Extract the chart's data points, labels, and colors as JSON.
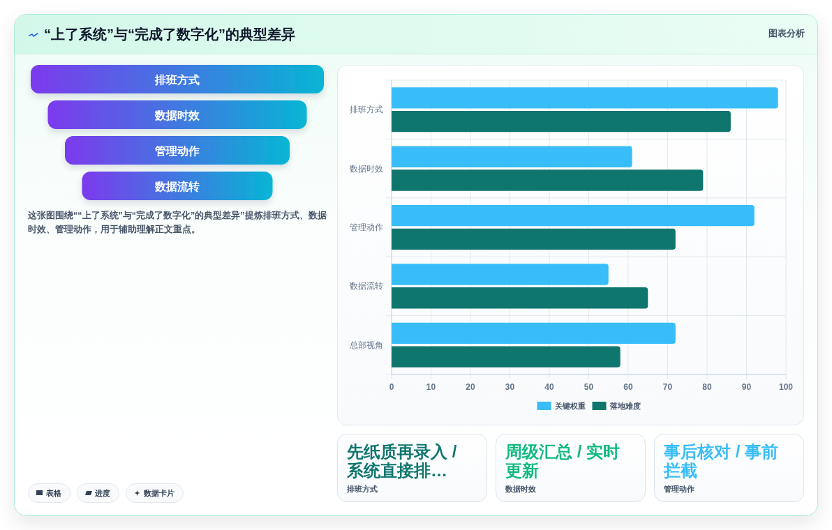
{
  "chart_data": [
    {
      "type": "other",
      "title": "“上了系统”与“完成了数字化”的典型差异",
      "categories": [
        "排班方式",
        "数据时效",
        "管理动作",
        "数据流转"
      ],
      "annotations": [
        "图表分析",
        "这张图围绕““上了系统”与“完成了数字化”的典型差异”提炼排班方式、数据时效、管理动作，用于辅助理解正文重点。",
        "表格",
        "进度",
        "数据卡片"
      ]
    },
    {
      "type": "bar",
      "orientation": "horizontal",
      "categories": [
        "排班方式",
        "数据时效",
        "管理动作",
        "数据流转",
        "总部视角"
      ],
      "series": [
        {
          "name": "关键权重",
          "color": "#38bdf8",
          "values": [
            98,
            61,
            92,
            55,
            72
          ]
        },
        {
          "name": "落地难度",
          "color": "#0f766e",
          "values": [
            86,
            79,
            72,
            65,
            58
          ]
        }
      ],
      "xlim": [
        0,
        100
      ],
      "xticks": [
        0,
        10,
        20,
        30,
        40,
        50,
        60,
        70,
        80,
        90,
        100
      ],
      "grid": true,
      "legend": "bottom"
    },
    {
      "type": "other",
      "title": "先纸质再录入 / 系统直接排…",
      "subtitle": "排班方式",
      "color": "#0f766e"
    },
    {
      "type": "other",
      "title": "周级汇总 / 实时更新",
      "subtitle": "数据时效",
      "color": "#10b981"
    },
    {
      "type": "other",
      "title": "事后核对 / 事前拦截",
      "subtitle": "管理动作",
      "color": "#38bdf8"
    }
  ]
}
